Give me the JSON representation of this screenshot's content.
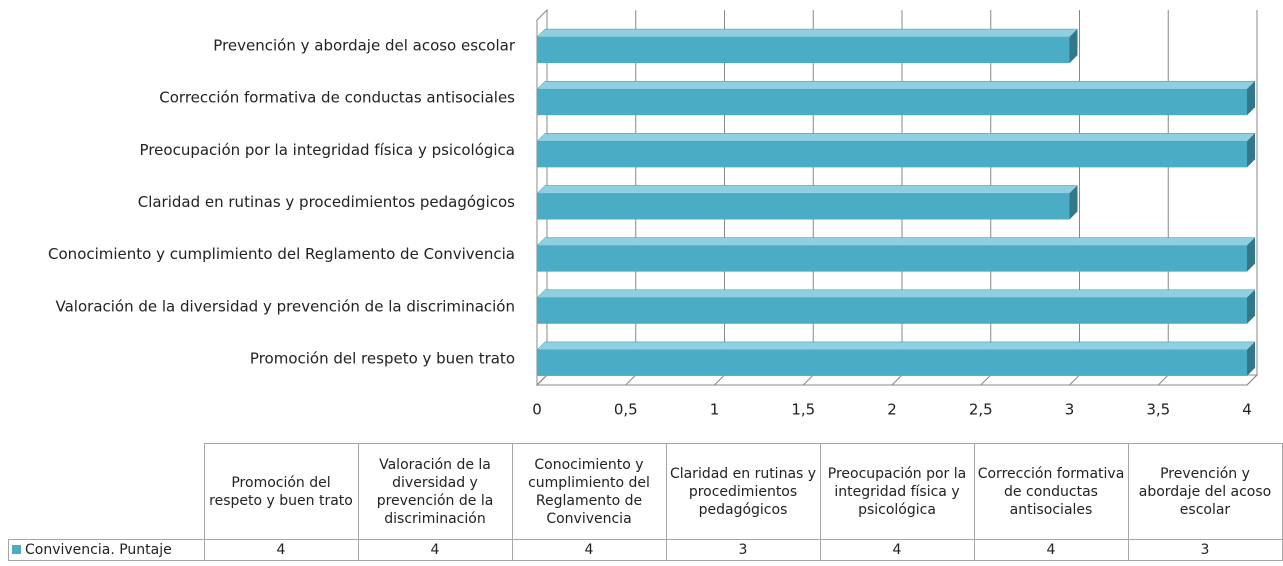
{
  "chart_data": {
    "type": "bar3d_horizontal",
    "categories": [
      "Promoción del respeto y buen trato",
      "Valoración de la diversidad y prevención de la discriminación",
      "Conocimiento y cumplimiento del Reglamento de Convivencia",
      "Claridad en rutinas y procedimientos pedagógicos",
      "Preocupación por la integridad física y psicológica",
      "Corrección formativa de conductas antisociales",
      "Prevención y abordaje del acoso escolar"
    ],
    "series": [
      {
        "name": "Convivencia. Puntaje",
        "color": "#4bacc6",
        "values": [
          4,
          4,
          4,
          3,
          4,
          4,
          3
        ]
      }
    ],
    "xlim": [
      0,
      4
    ],
    "xticks": [
      0,
      {
        "value": 0.5,
        "label": "0,5"
      },
      1,
      {
        "value": 1.5,
        "label": "1,5"
      },
      2,
      {
        "value": 2.5,
        "label": "2,5"
      },
      3,
      {
        "value": 3.5,
        "label": "3,5"
      },
      4
    ],
    "grid": true
  }
}
